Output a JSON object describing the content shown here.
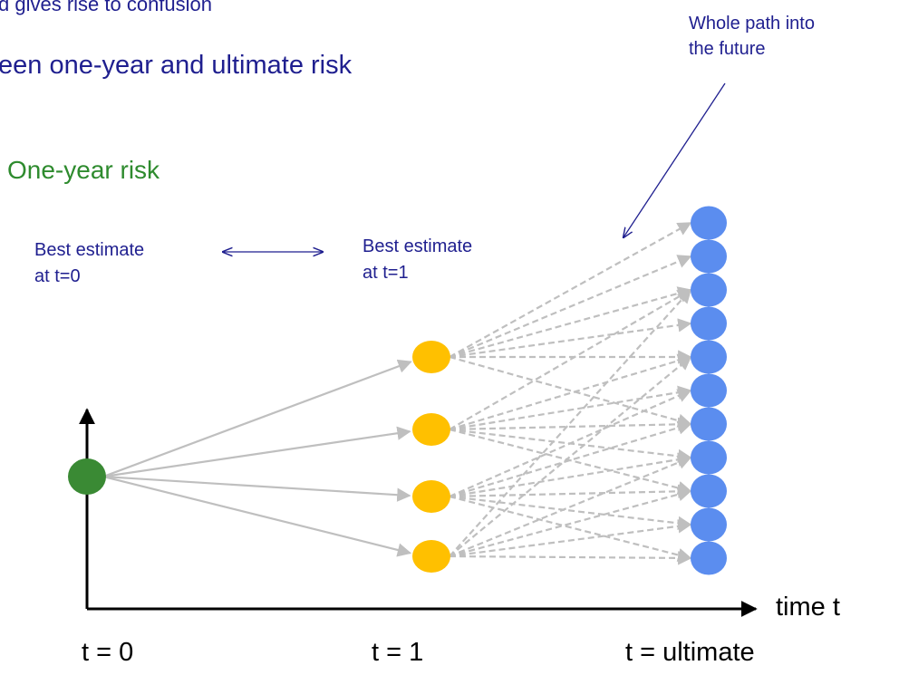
{
  "header": {
    "line1": "d gives rise to confusion",
    "line2": "een one-year and ultimate risk"
  },
  "section_label": "One-year risk",
  "annotation": {
    "line1": "Whole path into",
    "line2": "the future"
  },
  "best_t0": {
    "line1": "Best estimate",
    "line2": "at t=0"
  },
  "best_t1": {
    "line1": "Best estimate",
    "line2": "at t=1"
  },
  "axis": {
    "x_label": "time t",
    "ticks": [
      "t = 0",
      "t = 1",
      "t = ultimate"
    ]
  },
  "colors": {
    "start_node": "#3a8a34",
    "mid_node": "#ffc000",
    "end_node": "#5b8def",
    "solid_edge": "#bfbfbf",
    "dashed_edge": "#bfbfbf",
    "text_blue": "#1f1f8f",
    "text_green": "#2e8b2e"
  },
  "nodes": {
    "start_count": 1,
    "t1_count": 4,
    "ultimate_count": 11
  },
  "dashed_links": [
    [
      0,
      0
    ],
    [
      0,
      1
    ],
    [
      0,
      2
    ],
    [
      0,
      3
    ],
    [
      0,
      4
    ],
    [
      0,
      6
    ],
    [
      1,
      2
    ],
    [
      1,
      4
    ],
    [
      1,
      5
    ],
    [
      1,
      6
    ],
    [
      1,
      7
    ],
    [
      1,
      8
    ],
    [
      2,
      5
    ],
    [
      2,
      6
    ],
    [
      2,
      7
    ],
    [
      2,
      8
    ],
    [
      2,
      9
    ],
    [
      2,
      10
    ],
    [
      3,
      2
    ],
    [
      3,
      4
    ],
    [
      3,
      8
    ],
    [
      3,
      9
    ],
    [
      3,
      10
    ],
    [
      3,
      7
    ]
  ]
}
